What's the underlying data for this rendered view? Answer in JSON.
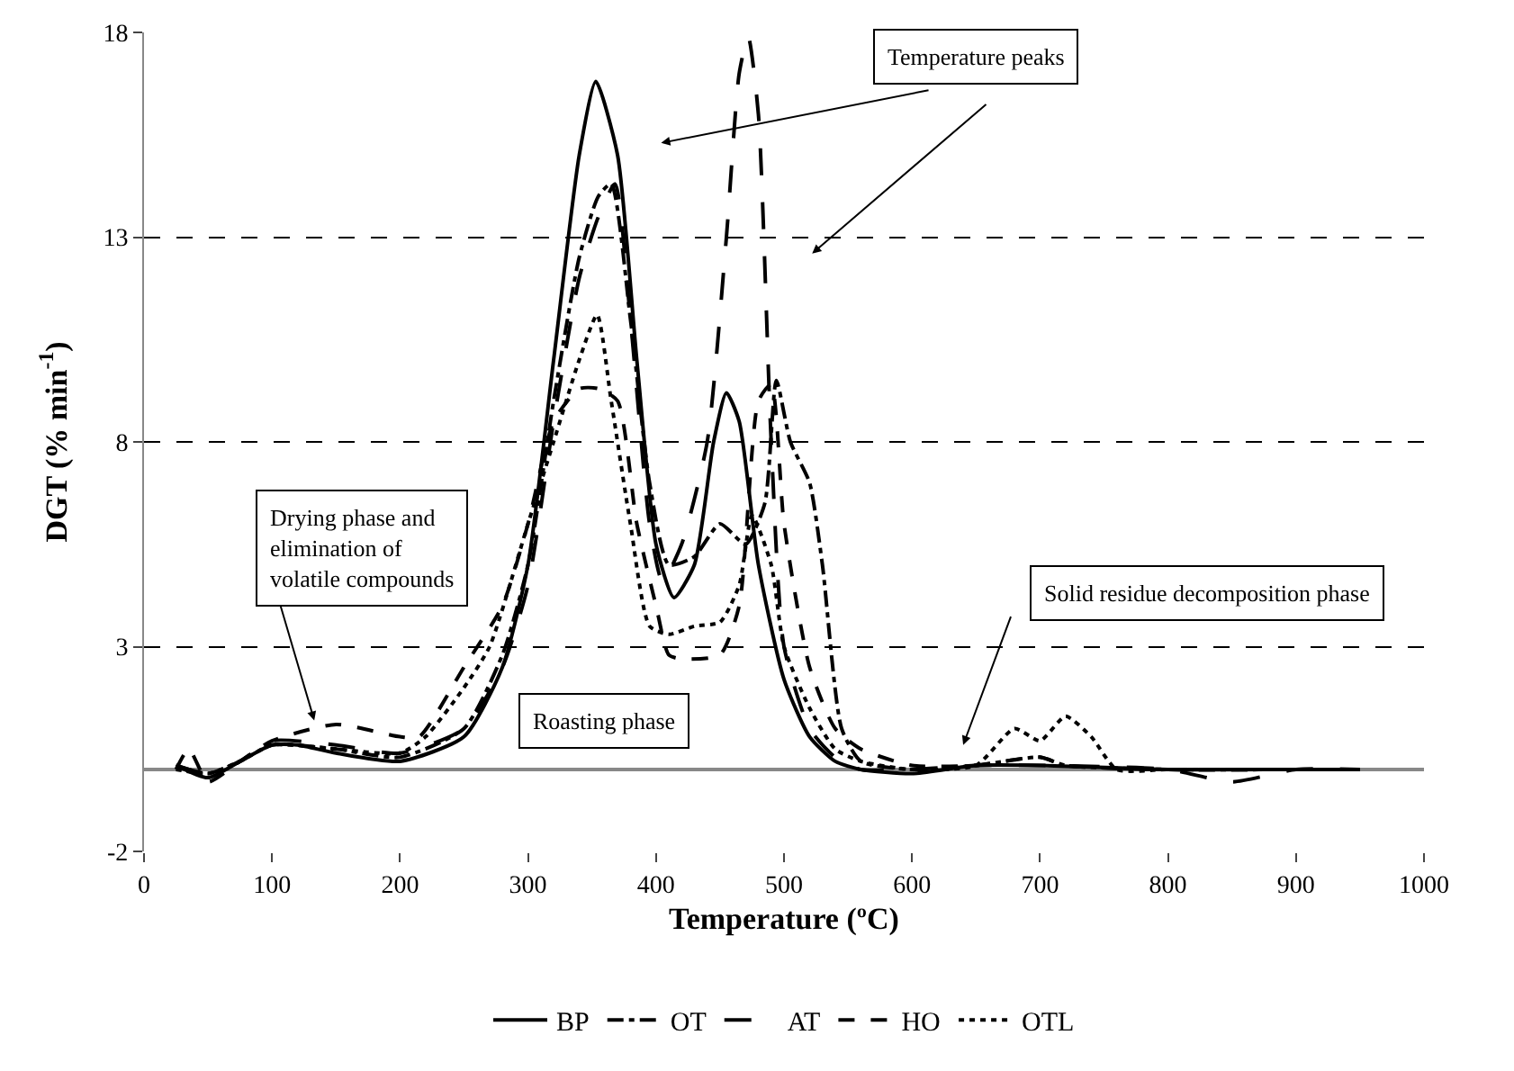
{
  "chart_data": {
    "type": "line",
    "xlabel": "Temperature (ºC)",
    "ylabel": "DGT (% min$^{-1}$)",
    "xlim": [
      0,
      1000
    ],
    "xticks": [
      0,
      100,
      200,
      300,
      400,
      500,
      600,
      700,
      800,
      900,
      1000
    ],
    "ylim": [
      -2,
      18
    ],
    "yticks": [
      -2,
      3,
      8,
      13,
      18
    ],
    "grid": "y",
    "legend": "bottom",
    "marker": "none",
    "annotations": [
      "Temperature peaks",
      {
        "text": "Drying phase and elimination of volatile compounds",
        "x": 133,
        "y": 1.2
      },
      "Roasting phase",
      "Solid residue decomposition phase"
    ],
    "series": [
      {
        "name": "BP",
        "color": "#000000",
        "line_style": "solid",
        "x": [
          25,
          50,
          75,
          100,
          120,
          150,
          200,
          250,
          280,
          300,
          320,
          340,
          353,
          370,
          385,
          400,
          414,
          430,
          445,
          455,
          465,
          480,
          500,
          520,
          540,
          560,
          600,
          650,
          700,
          800,
          900,
          950
        ],
        "values": [
          0.1,
          -0.2,
          0.2,
          0.6,
          0.6,
          0.4,
          0.2,
          0.8,
          2.5,
          5,
          10,
          15,
          16.8,
          15,
          10,
          5.5,
          4.2,
          5,
          8,
          9.2,
          8.5,
          5,
          2.2,
          0.8,
          0.2,
          0,
          -0.1,
          0.1,
          0.1,
          0,
          0,
          0
        ]
      },
      {
        "name": "OT",
        "color": "#000000",
        "line_style": "dashdot",
        "x": [
          25,
          50,
          75,
          100,
          150,
          200,
          250,
          280,
          300,
          320,
          340,
          355,
          365,
          380,
          395,
          410,
          430,
          450,
          470,
          485,
          494,
          505,
          520,
          530,
          545,
          560,
          600,
          650,
          700,
          720,
          800,
          900,
          950
        ],
        "values": [
          0.1,
          -0.1,
          0.2,
          0.6,
          0.5,
          0.3,
          1,
          2.8,
          5,
          9,
          12.5,
          14,
          14.3,
          11,
          7,
          5,
          5.2,
          6,
          5.5,
          6.5,
          9.5,
          8,
          7,
          5,
          1,
          0.2,
          0,
          0.1,
          0.3,
          0.1,
          0,
          0,
          0
        ]
      },
      {
        "name": "AT",
        "color": "#000000",
        "line_style": "longdash",
        "x": [
          25,
          50,
          75,
          100,
          150,
          200,
          250,
          280,
          300,
          320,
          340,
          355,
          368,
          380,
          395,
          405,
          420,
          440,
          455,
          465,
          472,
          480,
          490,
          500,
          520,
          540,
          560,
          600,
          650,
          700,
          800,
          850,
          900,
          950
        ],
        "values": [
          0.1,
          -0.1,
          0.2,
          0.7,
          0.6,
          0.4,
          1,
          2.5,
          4.5,
          8.5,
          12,
          13.5,
          14.3,
          11,
          6,
          4.6,
          5.5,
          8,
          13,
          17,
          17.9,
          16,
          8,
          3,
          1,
          0.3,
          0,
          0,
          0.1,
          0.1,
          0,
          -0.3,
          0,
          0
        ]
      },
      {
        "name": "HO",
        "color": "#000000",
        "line_style": "dashed",
        "x": [
          25,
          35,
          50,
          75,
          100,
          150,
          200,
          215,
          250,
          280,
          300,
          320,
          340,
          355,
          370,
          385,
          400,
          410,
          420,
          450,
          465,
          480,
          490,
          500,
          520,
          540,
          560,
          600,
          650,
          700,
          720,
          800,
          900,
          950
        ],
        "values": [
          0,
          0.5,
          -0.3,
          0.2,
          0.7,
          1.1,
          0.8,
          0.8,
          2.5,
          4,
          6,
          8.5,
          9.3,
          9.3,
          9,
          6,
          4,
          2.8,
          2.7,
          2.8,
          4,
          9,
          9.4,
          6,
          2.5,
          1,
          0.5,
          0.1,
          0.1,
          0.3,
          0.1,
          0,
          0,
          0
        ]
      },
      {
        "name": "OTL",
        "color": "#000000",
        "line_style": "dotted",
        "x": [
          25,
          50,
          75,
          100,
          150,
          200,
          220,
          250,
          270,
          300,
          320,
          340,
          354,
          365,
          380,
          395,
          410,
          430,
          450,
          465,
          475,
          490,
          500,
          520,
          540,
          560,
          600,
          650,
          680,
          700,
          720,
          740,
          760,
          800,
          900,
          950
        ],
        "values": [
          0,
          -0.1,
          0.2,
          0.6,
          0.5,
          0.4,
          0.8,
          2,
          3,
          6,
          8,
          10,
          11.1,
          9,
          6,
          3.5,
          3.3,
          3.5,
          3.6,
          4.5,
          6.2,
          5,
          3,
          1.5,
          0.5,
          0.2,
          0,
          0.1,
          1,
          0.7,
          1.3,
          0.8,
          0,
          0,
          0,
          0
        ]
      }
    ]
  }
}
